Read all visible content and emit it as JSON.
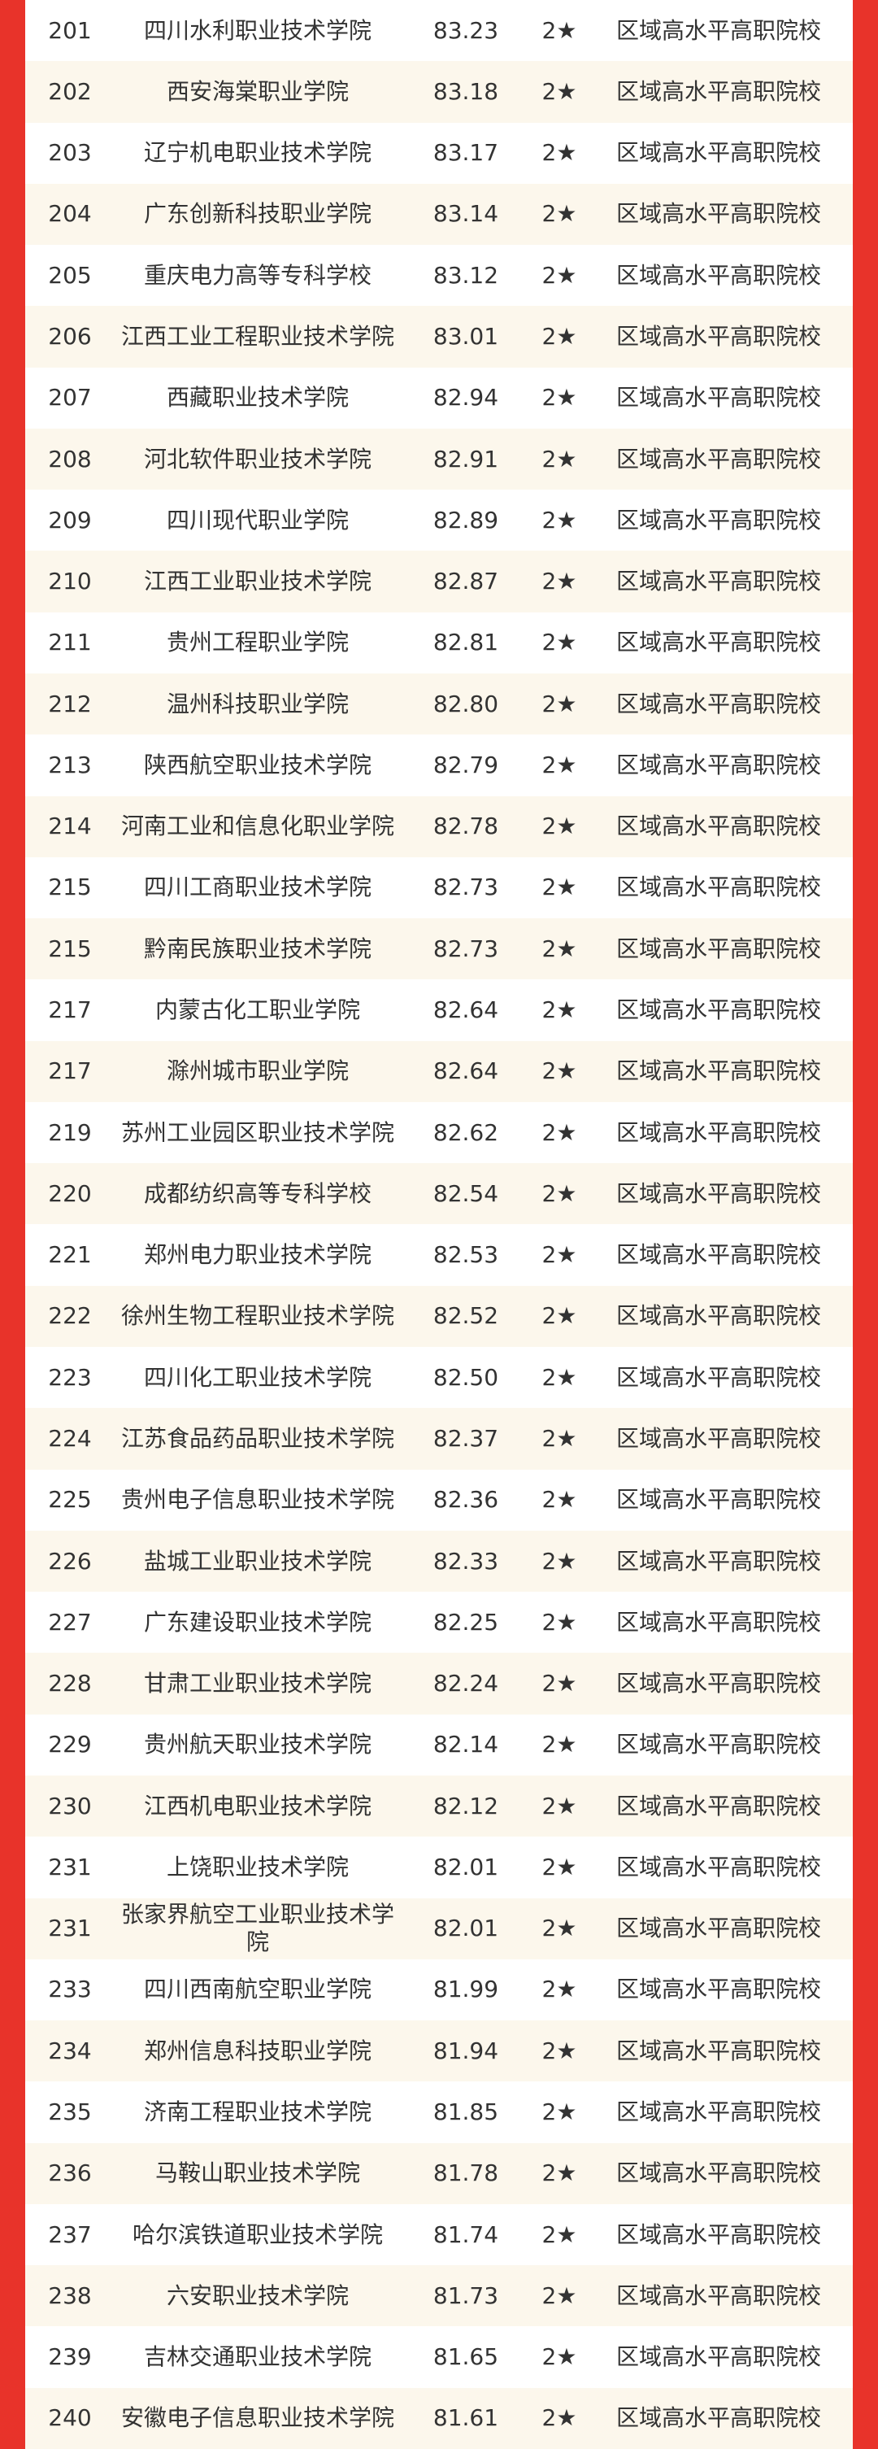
{
  "table": {
    "rows": [
      [
        "201",
        "四川水利职业技术学院",
        "83.23",
        "2★",
        "区域高水平高职院校"
      ],
      [
        "202",
        "西安海棠职业学院",
        "83.18",
        "2★",
        "区域高水平高职院校"
      ],
      [
        "203",
        "辽宁机电职业技术学院",
        "83.17",
        "2★",
        "区域高水平高职院校"
      ],
      [
        "204",
        "广东创新科技职业学院",
        "83.14",
        "2★",
        "区域高水平高职院校"
      ],
      [
        "205",
        "重庆电力高等专科学校",
        "83.12",
        "2★",
        "区域高水平高职院校"
      ],
      [
        "206",
        "江西工业工程职业技术学院",
        "83.01",
        "2★",
        "区域高水平高职院校"
      ],
      [
        "207",
        "西藏职业技术学院",
        "82.94",
        "2★",
        "区域高水平高职院校"
      ],
      [
        "208",
        "河北软件职业技术学院",
        "82.91",
        "2★",
        "区域高水平高职院校"
      ],
      [
        "209",
        "四川现代职业学院",
        "82.89",
        "2★",
        "区域高水平高职院校"
      ],
      [
        "210",
        "江西工业职业技术学院",
        "82.87",
        "2★",
        "区域高水平高职院校"
      ],
      [
        "211",
        "贵州工程职业学院",
        "82.81",
        "2★",
        "区域高水平高职院校"
      ],
      [
        "212",
        "温州科技职业学院",
        "82.80",
        "2★",
        "区域高水平高职院校"
      ],
      [
        "213",
        "陕西航空职业技术学院",
        "82.79",
        "2★",
        "区域高水平高职院校"
      ],
      [
        "214",
        "河南工业和信息化职业学院",
        "82.78",
        "2★",
        "区域高水平高职院校"
      ],
      [
        "215",
        "四川工商职业技术学院",
        "82.73",
        "2★",
        "区域高水平高职院校"
      ],
      [
        "215",
        "黔南民族职业技术学院",
        "82.73",
        "2★",
        "区域高水平高职院校"
      ],
      [
        "217",
        "内蒙古化工职业学院",
        "82.64",
        "2★",
        "区域高水平高职院校"
      ],
      [
        "217",
        "滁州城市职业学院",
        "82.64",
        "2★",
        "区域高水平高职院校"
      ],
      [
        "219",
        "苏州工业园区职业技术学院",
        "82.62",
        "2★",
        "区域高水平高职院校"
      ],
      [
        "220",
        "成都纺织高等专科学校",
        "82.54",
        "2★",
        "区域高水平高职院校"
      ],
      [
        "221",
        "郑州电力职业技术学院",
        "82.53",
        "2★",
        "区域高水平高职院校"
      ],
      [
        "222",
        "徐州生物工程职业技术学院",
        "82.52",
        "2★",
        "区域高水平高职院校"
      ],
      [
        "223",
        "四川化工职业技术学院",
        "82.50",
        "2★",
        "区域高水平高职院校"
      ],
      [
        "224",
        "江苏食品药品职业技术学院",
        "82.37",
        "2★",
        "区域高水平高职院校"
      ],
      [
        "225",
        "贵州电子信息职业技术学院",
        "82.36",
        "2★",
        "区域高水平高职院校"
      ],
      [
        "226",
        "盐城工业职业技术学院",
        "82.33",
        "2★",
        "区域高水平高职院校"
      ],
      [
        "227",
        "广东建设职业技术学院",
        "82.25",
        "2★",
        "区域高水平高职院校"
      ],
      [
        "228",
        "甘肃工业职业技术学院",
        "82.24",
        "2★",
        "区域高水平高职院校"
      ],
      [
        "229",
        "贵州航天职业技术学院",
        "82.14",
        "2★",
        "区域高水平高职院校"
      ],
      [
        "230",
        "江西机电职业技术学院",
        "82.12",
        "2★",
        "区域高水平高职院校"
      ],
      [
        "231",
        "上饶职业技术学院",
        "82.01",
        "2★",
        "区域高水平高职院校"
      ],
      [
        "231",
        "张家界航空工业职业技术学院",
        "82.01",
        "2★",
        "区域高水平高职院校"
      ],
      [
        "233",
        "四川西南航空职业学院",
        "81.99",
        "2★",
        "区域高水平高职院校"
      ],
      [
        "234",
        "郑州信息科技职业学院",
        "81.94",
        "2★",
        "区域高水平高职院校"
      ],
      [
        "235",
        "济南工程职业技术学院",
        "81.85",
        "2★",
        "区域高水平高职院校"
      ],
      [
        "236",
        "马鞍山职业技术学院",
        "81.78",
        "2★",
        "区域高水平高职院校"
      ],
      [
        "237",
        "哈尔滨铁道职业技术学院",
        "81.74",
        "2★",
        "区域高水平高职院校"
      ],
      [
        "238",
        "六安职业技术学院",
        "81.73",
        "2★",
        "区域高水平高职院校"
      ],
      [
        "239",
        "吉林交通职业技术学院",
        "81.65",
        "2★",
        "区域高水平高职院校"
      ],
      [
        "240",
        "安徽电子信息职业技术学院",
        "81.61",
        "2★",
        "区域高水平高职院校"
      ]
    ]
  }
}
